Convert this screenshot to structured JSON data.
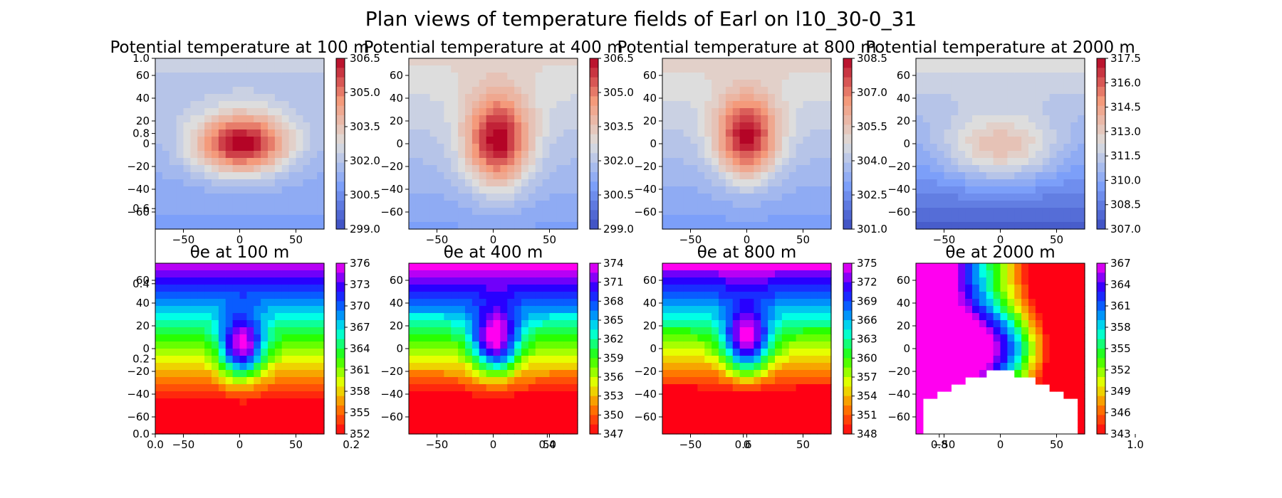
{
  "figure": {
    "title": "Plan views of temperature fields of Earl on l10_30-0_31"
  },
  "chart_data": [
    {
      "type": "heatmap",
      "id": "pt100",
      "title": "Potential temperature at 100 m",
      "xlim": [
        -75,
        75
      ],
      "ylim": [
        -75,
        75
      ],
      "xticks": [
        "−50",
        "0",
        "50"
      ],
      "yticks": [
        "60",
        "40",
        "20",
        "0",
        "−20",
        "−40",
        "−60"
      ],
      "colorscale": "coolwarm",
      "clim": [
        299.0,
        306.5
      ],
      "colorbar_ticks": [
        "306.5",
        "305.0",
        "303.5",
        "302.0",
        "300.5",
        "299.0"
      ],
      "center": [
        2,
        0
      ],
      "amplitude": 5.0,
      "radius": 38,
      "gradient": [
        0,
        0.012
      ],
      "base": 301.6,
      "aspect": [
        1.6,
        1.0
      ]
    },
    {
      "type": "heatmap",
      "id": "pt400",
      "title": "Potential temperature at 400 m",
      "xlim": [
        -75,
        75
      ],
      "ylim": [
        -75,
        75
      ],
      "xticks": [
        "−50",
        "0",
        "50"
      ],
      "yticks": [
        "60",
        "40",
        "20",
        "0",
        "−20",
        "−40",
        "−60"
      ],
      "colorscale": "coolwarm",
      "clim": [
        299.0,
        306.5
      ],
      "colorbar_ticks": [
        "306.5",
        "305.0",
        "303.5",
        "302.0",
        "300.5",
        "299.0"
      ],
      "center": [
        4,
        2
      ],
      "amplitude": 4.6,
      "radius": 42,
      "gradient": [
        0,
        0.018
      ],
      "base": 302.0,
      "aspect": [
        1.0,
        1.4
      ]
    },
    {
      "type": "heatmap",
      "id": "pt800",
      "title": "Potential temperature at 800 m",
      "xlim": [
        -75,
        75
      ],
      "ylim": [
        -75,
        75
      ],
      "xticks": [
        "−50",
        "0",
        "50"
      ],
      "yticks": [
        "60",
        "40",
        "20",
        "0",
        "−20",
        "−40",
        "−60"
      ],
      "colorscale": "coolwarm",
      "clim": [
        301.0,
        308.5
      ],
      "colorbar_ticks": [
        "308.5",
        "307.0",
        "305.5",
        "304.0",
        "302.5",
        "301.0"
      ],
      "center": [
        0,
        5
      ],
      "amplitude": 4.4,
      "radius": 40,
      "gradient": [
        0,
        0.02
      ],
      "base": 304.0,
      "aspect": [
        1.0,
        1.3
      ]
    },
    {
      "type": "heatmap",
      "id": "pt2000",
      "title": "Potential temperature at 2000 m",
      "xlim": [
        -75,
        75
      ],
      "ylim": [
        -75,
        75
      ],
      "xticks": [
        "−50",
        "0",
        "50"
      ],
      "yticks": [
        "60",
        "40",
        "20",
        "0",
        "−20",
        "−40",
        "−60"
      ],
      "colorscale": "coolwarm",
      "clim": [
        307.0,
        317.5
      ],
      "colorbar_ticks": [
        "317.5",
        "316.0",
        "314.5",
        "313.0",
        "311.5",
        "310.0",
        "308.5",
        "307.0"
      ],
      "center": [
        0,
        -5
      ],
      "amplitude": 3.5,
      "radius": 45,
      "gradient": [
        0,
        0.03
      ],
      "base": 310.0,
      "aspect": [
        1.7,
        1.0
      ]
    },
    {
      "type": "heatmap",
      "id": "te100",
      "title": "θe at 100 m",
      "xlim": [
        -75,
        75
      ],
      "ylim": [
        -75,
        75
      ],
      "xticks": [
        "−50",
        "0",
        "50"
      ],
      "yticks": [
        "60",
        "40",
        "20",
        "0",
        "−20",
        "−40",
        "−60"
      ],
      "colorscale": "gist_rainbow_r",
      "clim": [
        352,
        376
      ],
      "colorbar_ticks": [
        "376",
        "373",
        "370",
        "367",
        "364",
        "361",
        "358",
        "355",
        "352"
      ],
      "center": [
        2,
        0
      ],
      "amplitude": 15.0,
      "radius": 28,
      "gradient": [
        0,
        0.08
      ],
      "base": 361.0,
      "aspect": [
        1.0,
        1.4
      ]
    },
    {
      "type": "heatmap",
      "id": "te400",
      "title": "θe at 400 m",
      "xlim": [
        -75,
        75
      ],
      "ylim": [
        -75,
        75
      ],
      "xticks": [
        "−50",
        "0",
        "50"
      ],
      "yticks": [
        "60",
        "40",
        "20",
        "0",
        "−20",
        "−40",
        "−60"
      ],
      "colorscale": "gist_rainbow_r",
      "clim": [
        347,
        374
      ],
      "colorbar_ticks": [
        "374",
        "371",
        "368",
        "365",
        "362",
        "359",
        "356",
        "353",
        "350",
        "347"
      ],
      "center": [
        2,
        5
      ],
      "amplitude": 16.0,
      "radius": 30,
      "gradient": [
        0,
        0.09
      ],
      "base": 357.0,
      "aspect": [
        1.0,
        1.4
      ]
    },
    {
      "type": "heatmap",
      "id": "te800",
      "title": "θe at 800 m",
      "xlim": [
        -75,
        75
      ],
      "ylim": [
        -75,
        75
      ],
      "xticks": [
        "−50",
        "0",
        "50"
      ],
      "yticks": [
        "60",
        "40",
        "20",
        "0",
        "−20",
        "−40",
        "−60"
      ],
      "colorscale": "gist_rainbow_r",
      "clim": [
        348,
        375
      ],
      "colorbar_ticks": [
        "375",
        "372",
        "369",
        "366",
        "363",
        "360",
        "357",
        "354",
        "351",
        "348"
      ],
      "center": [
        0,
        5
      ],
      "amplitude": 17.0,
      "radius": 30,
      "gradient": [
        0,
        0.09
      ],
      "base": 357.0,
      "aspect": [
        1.0,
        1.4
      ]
    },
    {
      "type": "heatmap",
      "id": "te2000",
      "title": "θe at 2000 m",
      "xlim": [
        -75,
        75
      ],
      "ylim": [
        -75,
        75
      ],
      "xticks": [
        "−50",
        "0",
        "50"
      ],
      "yticks": [
        "60",
        "40",
        "20",
        "0",
        "−20",
        "−40",
        "−60"
      ],
      "colorscale": "gist_rainbow_r",
      "clim": [
        343,
        367
      ],
      "colorbar_ticks": [
        "367",
        "364",
        "361",
        "358",
        "355",
        "352",
        "349",
        "346",
        "343"
      ],
      "center": [
        0,
        0
      ],
      "amplitude": 13.0,
      "radius": 50,
      "gradient": [
        -0.15,
        0
      ],
      "base": 352.0,
      "aspect": [
        1.5,
        1.0
      ],
      "missing_region": true
    }
  ],
  "axes_overlay": {
    "yticks": [
      "1.0",
      "0.8",
      "0.6",
      "0.4",
      "0.2",
      "0.0"
    ],
    "xticks": [
      "0.0",
      "0.2",
      "0.4",
      "0.6",
      "0.8",
      "1.0"
    ]
  }
}
